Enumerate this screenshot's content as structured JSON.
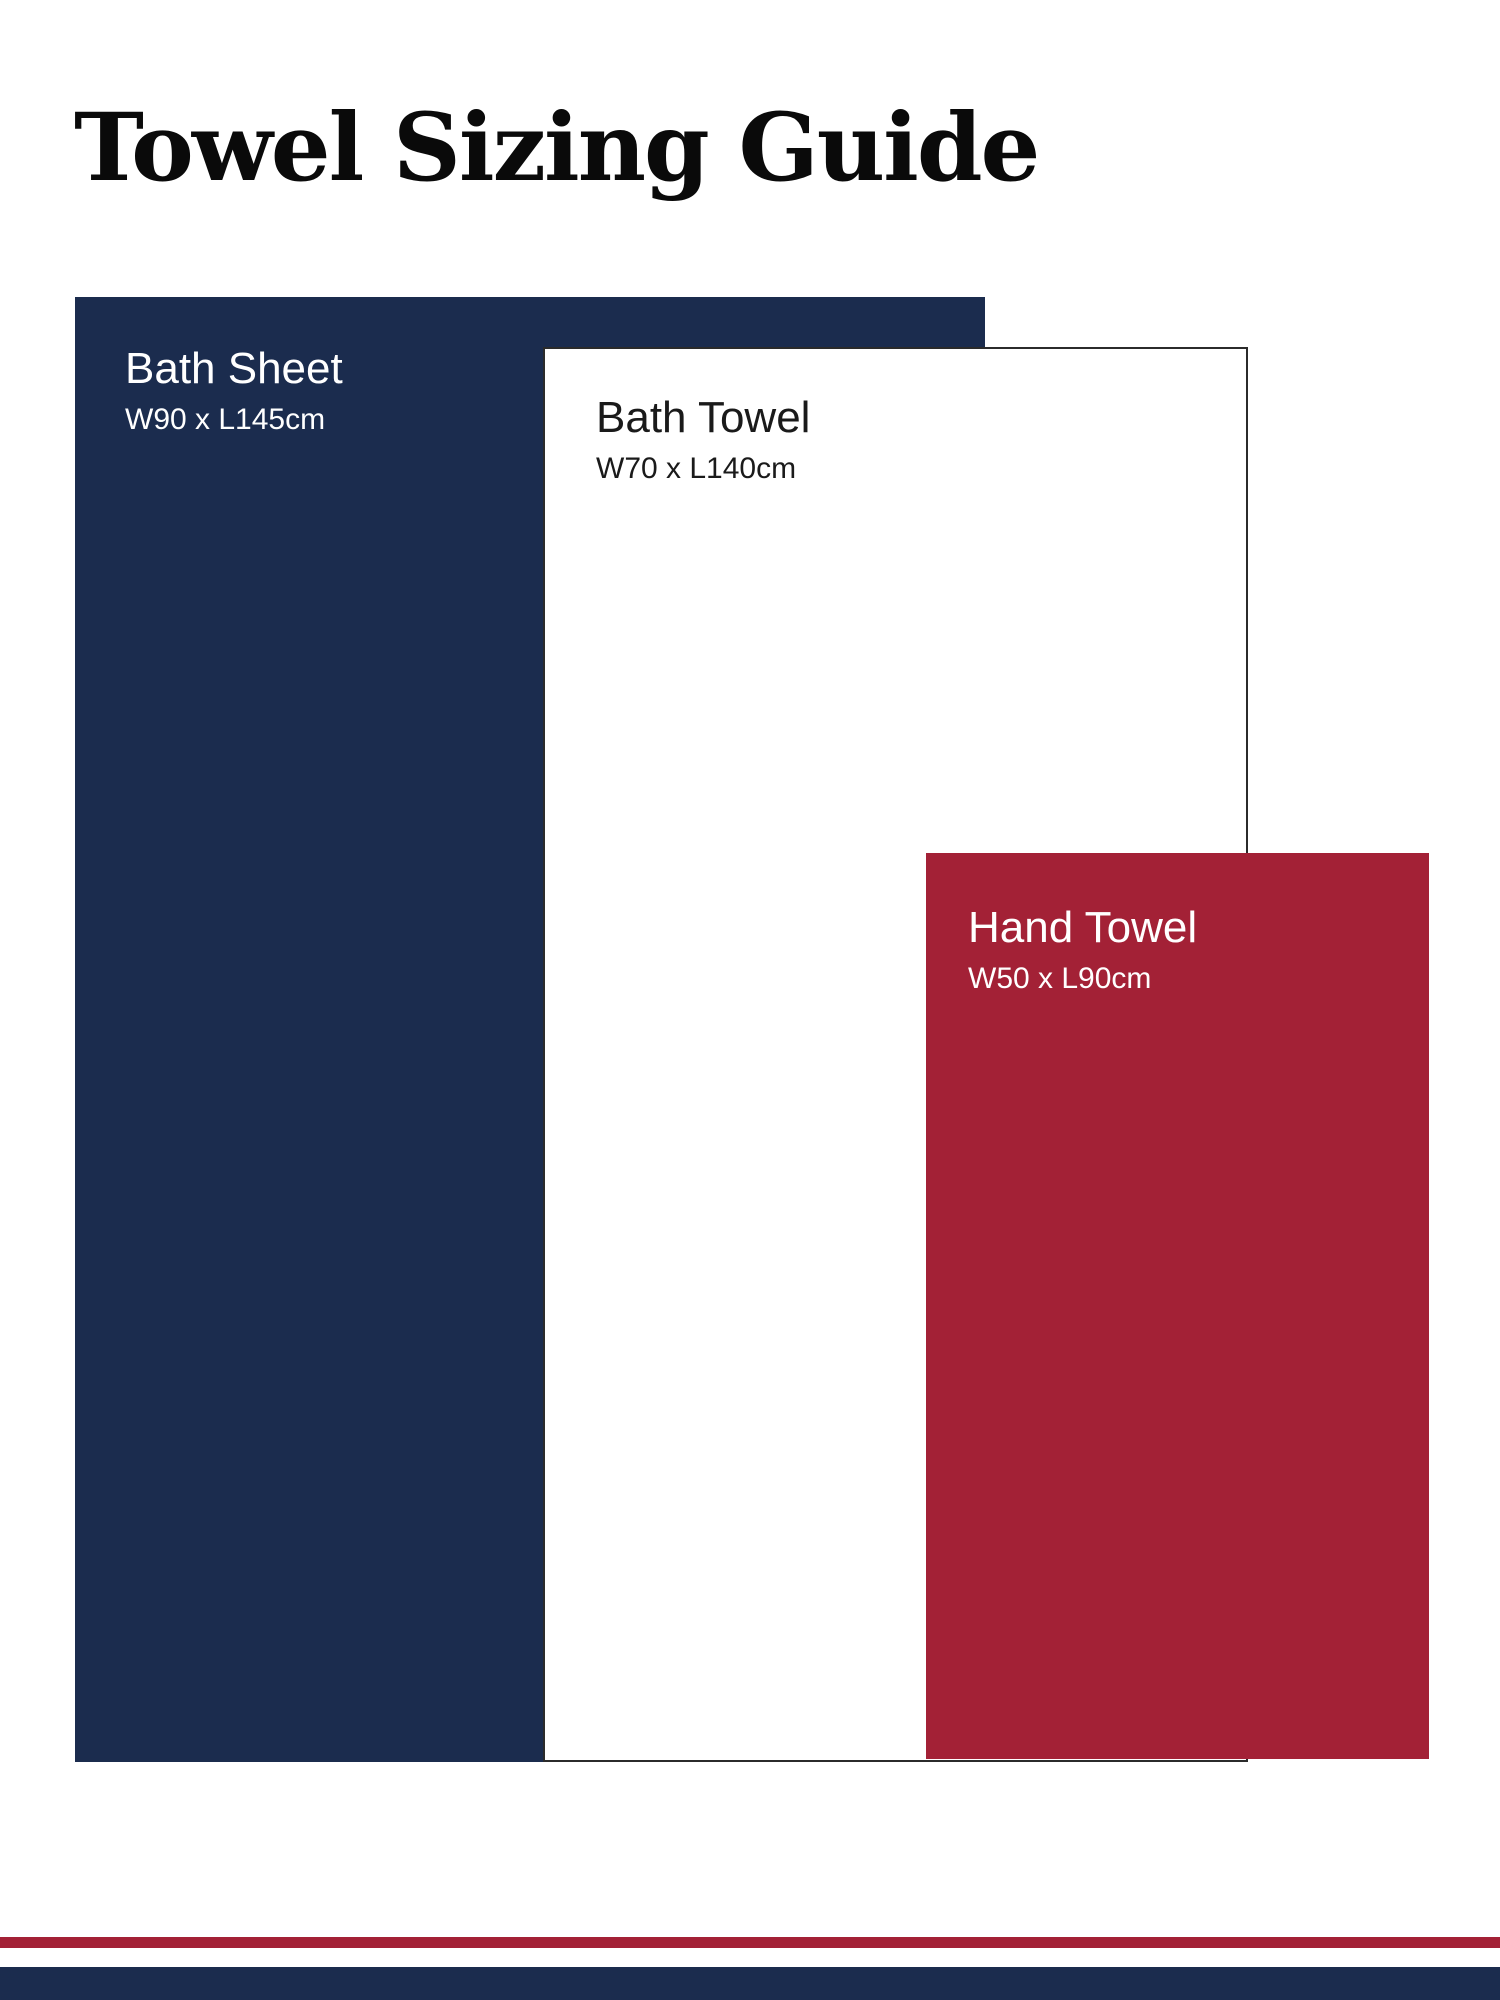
{
  "header": {
    "title": "Towel Sizing Guide"
  },
  "towels": [
    {
      "name": "Bath Sheet",
      "size_label": "W90 x L145cm",
      "width_cm": 90,
      "length_cm": 145,
      "fill_color": "#1B2C4E",
      "text_color": "#FFFFFF"
    },
    {
      "name": "Bath Towel",
      "size_label": "W70 x L140cm",
      "width_cm": 70,
      "length_cm": 140,
      "fill_color": "#FFFFFF",
      "border_color": "#2B2B2B",
      "text_color": "#1A1A1A"
    },
    {
      "name": "Hand Towel",
      "size_label": "W50 x L90cm",
      "width_cm": 50,
      "length_cm": 90,
      "fill_color": "#A32136",
      "text_color": "#FFFFFF"
    }
  ],
  "footer": {
    "stripe_colors": [
      "#A32136",
      "#1B2C4E"
    ]
  }
}
